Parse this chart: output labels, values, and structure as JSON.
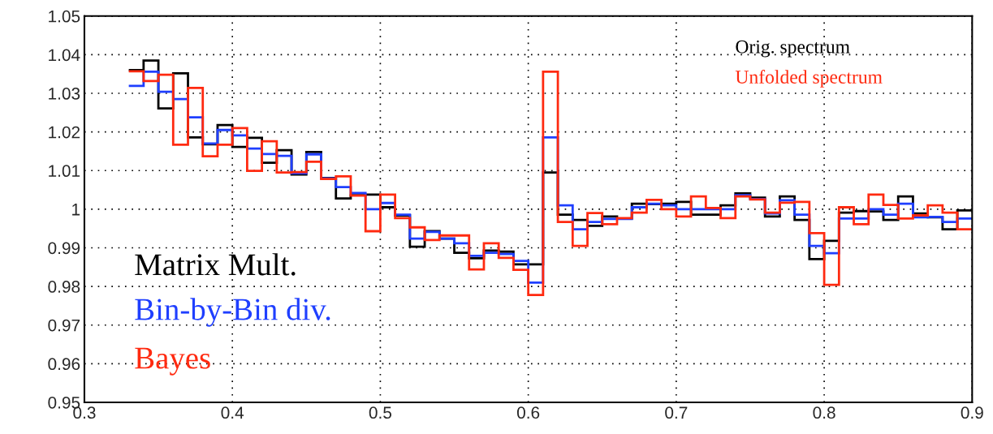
{
  "chart_data": {
    "type": "histogram",
    "bins": [
      0.33,
      0.34,
      0.35,
      0.36,
      0.37,
      0.38,
      0.39,
      0.4,
      0.41,
      0.42,
      0.43,
      0.44,
      0.45,
      0.46,
      0.47,
      0.48,
      0.49,
      0.5,
      0.51,
      0.52,
      0.53,
      0.54,
      0.55,
      0.56,
      0.57,
      0.58,
      0.59,
      0.6,
      0.61,
      0.62,
      0.63,
      0.64,
      0.65,
      0.66,
      0.67,
      0.68,
      0.69,
      0.7,
      0.71,
      0.72,
      0.73,
      0.74,
      0.75,
      0.76,
      0.77,
      0.78,
      0.79,
      0.8,
      0.81,
      0.82,
      0.83,
      0.84,
      0.85,
      0.86,
      0.87,
      0.88,
      0.89,
      0.9
    ],
    "series": [
      {
        "name": "Matrix Mult.",
        "color": "#000000",
        "values": [
          1.036,
          1.0385,
          1.0261,
          1.0352,
          1.0186,
          1.0168,
          1.0218,
          1.0161,
          1.0185,
          1.012,
          1.0153,
          1.009,
          1.0148,
          1.0081,
          1.0028,
          1.0036,
          1.0038,
          1.0005,
          0.9984,
          0.9903,
          0.9943,
          0.9924,
          0.9887,
          0.9873,
          0.9893,
          0.989,
          0.9857,
          0.9857,
          1.0095,
          0.9986,
          0.9972,
          0.9957,
          0.9981,
          0.9976,
          1.0014,
          1.0013,
          1.0014,
          1.0019,
          0.9986,
          0.9986,
          1.001,
          1.0041,
          1.003,
          0.9981,
          1.0033,
          0.9972,
          0.9871,
          0.9918,
          0.9991,
          0.9995,
          0.9994,
          0.9972,
          1.0033,
          0.9989,
          0.9979,
          0.9948,
          0.9997
        ]
      },
      {
        "name": "Bin-by-Bin div.",
        "color": "#1f3fff",
        "values": [
          1.0319,
          1.0356,
          1.0304,
          1.0285,
          1.0238,
          1.017,
          1.0205,
          1.0191,
          1.0157,
          1.0143,
          1.0138,
          1.0093,
          1.0142,
          1.008,
          1.0057,
          1.0042,
          1.0,
          1.0016,
          0.9986,
          0.9924,
          0.9941,
          0.9924,
          0.9912,
          0.9879,
          0.9887,
          0.9884,
          0.9866,
          0.981,
          1.0186,
          1.001,
          0.9948,
          0.9967,
          0.9975,
          0.9975,
          1.0005,
          1.0014,
          1.001,
          1.0,
          1.0,
          1.0,
          1.0,
          1.0036,
          1.0026,
          0.9989,
          1.0023,
          0.9986,
          0.9905,
          0.9886,
          0.9976,
          0.9976,
          1.0,
          0.9986,
          1.0014,
          0.9979,
          0.998,
          0.9967,
          0.9976
        ]
      },
      {
        "name": "Bayes",
        "color": "#ff2a10",
        "values": [
          1.0357,
          1.0332,
          1.0348,
          1.0167,
          1.0314,
          1.0137,
          1.0167,
          1.021,
          1.0099,
          1.0176,
          1.0095,
          1.0096,
          1.0123,
          1.0078,
          1.0085,
          1.0035,
          0.9943,
          1.0038,
          0.9977,
          0.9953,
          0.992,
          0.9932,
          0.9932,
          0.9844,
          0.9912,
          0.9874,
          0.9843,
          0.9778,
          1.0356,
          0.9967,
          0.9905,
          0.999,
          0.9961,
          0.9977,
          0.9991,
          1.0024,
          1.0,
          0.9981,
          1.0033,
          1.0003,
          0.9977,
          1.0033,
          1.0025,
          0.9991,
          1.0017,
          1.0019,
          0.9938,
          0.9804,
          1.0005,
          0.9961,
          1.0038,
          1.0011,
          0.9976,
          0.9984,
          1.001,
          0.9991,
          0.9948
        ]
      }
    ],
    "annotations": [
      "Orig. spectrum",
      "Unfolded spectrum"
    ],
    "xlim": [
      0.3,
      0.9
    ],
    "xticks": [
      0.3,
      0.4,
      0.5,
      0.6,
      0.7,
      0.8,
      0.9
    ],
    "ylim": [
      0.95,
      1.05
    ],
    "yticks": [
      0.95,
      0.96,
      0.97,
      0.98,
      0.99,
      1,
      1.01,
      1.02,
      1.03,
      1.04,
      1.05
    ],
    "grid": true
  }
}
